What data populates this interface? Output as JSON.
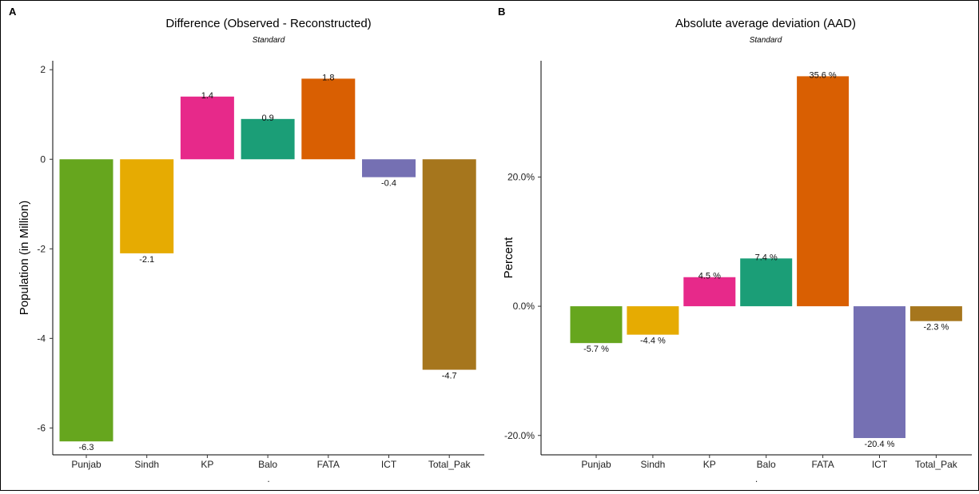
{
  "chart_data": [
    {
      "type": "bar",
      "panel": "A",
      "title": "Difference (Observed - Reconstructed)",
      "subtitle": "Standard",
      "xlabel": ".",
      "ylabel": "Population (in Million)",
      "categories": [
        "Punjab",
        "Sindh",
        "KP",
        "Balo",
        "FATA",
        "ICT",
        "Total_Pak"
      ],
      "values": [
        -6.3,
        -2.1,
        1.4,
        0.9,
        1.8,
        -0.4,
        -4.7
      ],
      "data_labels": [
        "-6.3",
        "-2.1",
        "1.4",
        "0.9",
        "1.8",
        "-0.4",
        "-4.7"
      ],
      "colors": [
        "#66a61e",
        "#e6ab02",
        "#e7298a",
        "#1b9e77",
        "#d95f02",
        "#7570b3",
        "#a6761d"
      ],
      "ylim": [
        -6.6,
        2.2
      ],
      "yticks": [
        2,
        0,
        -2,
        -4,
        -6
      ],
      "ytick_labels": [
        "2",
        "0",
        "-2",
        "-4",
        "-6"
      ],
      "grid": false
    },
    {
      "type": "bar",
      "panel": "B",
      "title": "Absolute average deviation (AAD)",
      "subtitle": "Standard",
      "xlabel": ".",
      "ylabel": "Percent",
      "categories": [
        "Punjab",
        "Sindh",
        "KP",
        "Balo",
        "FATA",
        "ICT",
        "Total_Pak"
      ],
      "values": [
        -5.7,
        -4.4,
        4.5,
        7.4,
        35.6,
        -20.4,
        -2.3
      ],
      "data_labels": [
        "-5.7 %",
        "-4.4 %",
        "4.5 %",
        "7.4 %",
        "35.6 %",
        "-20.4 %",
        "-2.3 %"
      ],
      "colors": [
        "#66a61e",
        "#e6ab02",
        "#e7298a",
        "#1b9e77",
        "#d95f02",
        "#7570b3",
        "#a6761d"
      ],
      "ylim": [
        -23.0,
        38.0
      ],
      "yticks": [
        20,
        0,
        -20
      ],
      "ytick_labels": [
        "20.0%",
        "0.0%",
        "-20.0%"
      ],
      "grid": false
    }
  ]
}
